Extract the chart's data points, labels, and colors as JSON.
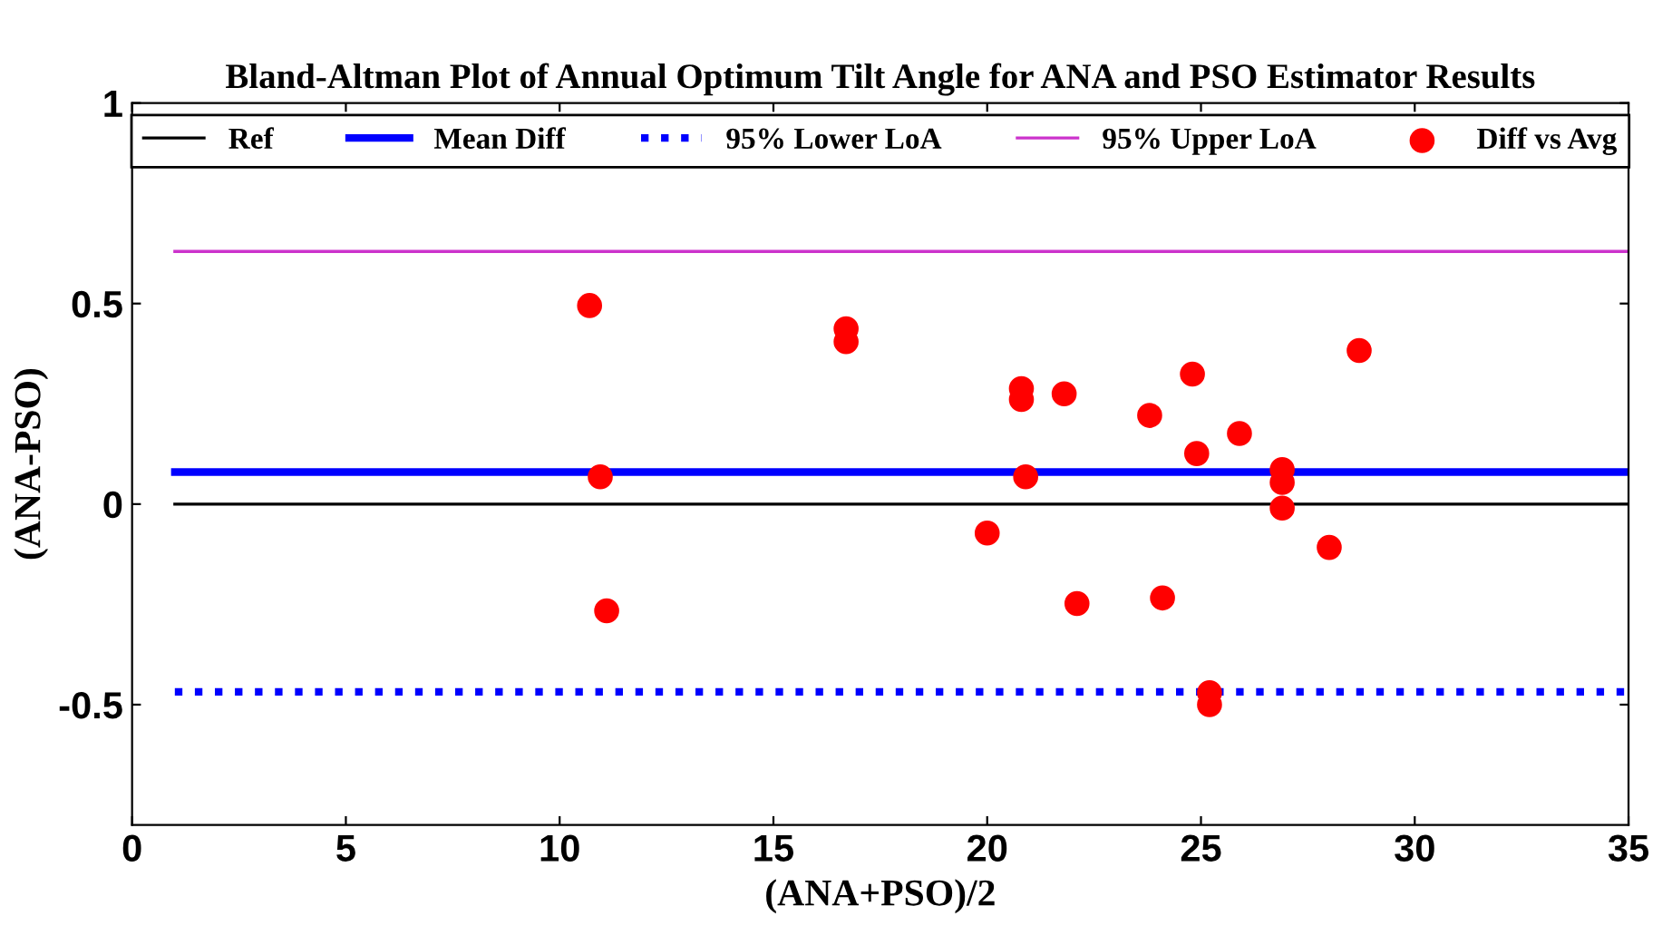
{
  "chart_data": {
    "type": "scatter",
    "title": "Bland-Altman Plot of Annual Optimum Tilt Angle for ANA and PSO Estimator Results",
    "xlabel": "(ANA+PSO)/2",
    "ylabel": "(ANA-PSO)",
    "xlim": [
      0,
      35
    ],
    "xticks": [
      0,
      5,
      10,
      15,
      20,
      25,
      30,
      35
    ],
    "ylim": [
      -0.8,
      1
    ],
    "yticks": [
      -0.5,
      0,
      0.5,
      1
    ],
    "grid": false,
    "legend": "top",
    "series": [
      {
        "name": "Ref",
        "type": "line",
        "color": "#000000",
        "line_style": "solid",
        "marker": "none",
        "x": [
          1,
          35
        ],
        "values": [
          0,
          0
        ]
      },
      {
        "name": "Mean Diff",
        "type": "line",
        "color": "#0000ff",
        "line_style": "solid",
        "marker": "none",
        "x": [
          1,
          35
        ],
        "values": [
          0.08,
          0.08
        ]
      },
      {
        "name": "95% Lower LoA",
        "type": "line",
        "color": "#0000ff",
        "line_style": "dotted",
        "marker": "none",
        "x": [
          1,
          35
        ],
        "values": [
          -0.468,
          -0.468
        ]
      },
      {
        "name": "95% Upper LoA",
        "type": "line",
        "color": "#cc33cc",
        "line_style": "solid",
        "marker": "none",
        "x": [
          1,
          35
        ],
        "values": [
          0.63,
          0.63
        ]
      },
      {
        "name": "Diff vs Avg",
        "color": "#ff0000",
        "marker": "circle",
        "x": [
          10.7,
          10.95,
          11.1,
          16.7,
          16.7,
          20.0,
          20.8,
          20.8,
          20.9,
          21.8,
          22.1,
          23.8,
          24.1,
          24.8,
          24.9,
          25.2,
          25.2,
          25.9,
          26.9,
          26.9,
          26.9,
          28.0,
          28.7
        ],
        "values": [
          0.495,
          0.068,
          -0.266,
          0.437,
          0.405,
          -0.072,
          0.288,
          0.261,
          0.068,
          0.275,
          -0.248,
          0.221,
          -0.234,
          0.324,
          0.126,
          -0.47,
          -0.5,
          0.176,
          0.086,
          0.054,
          -0.01,
          -0.108,
          0.383
        ]
      }
    ]
  }
}
